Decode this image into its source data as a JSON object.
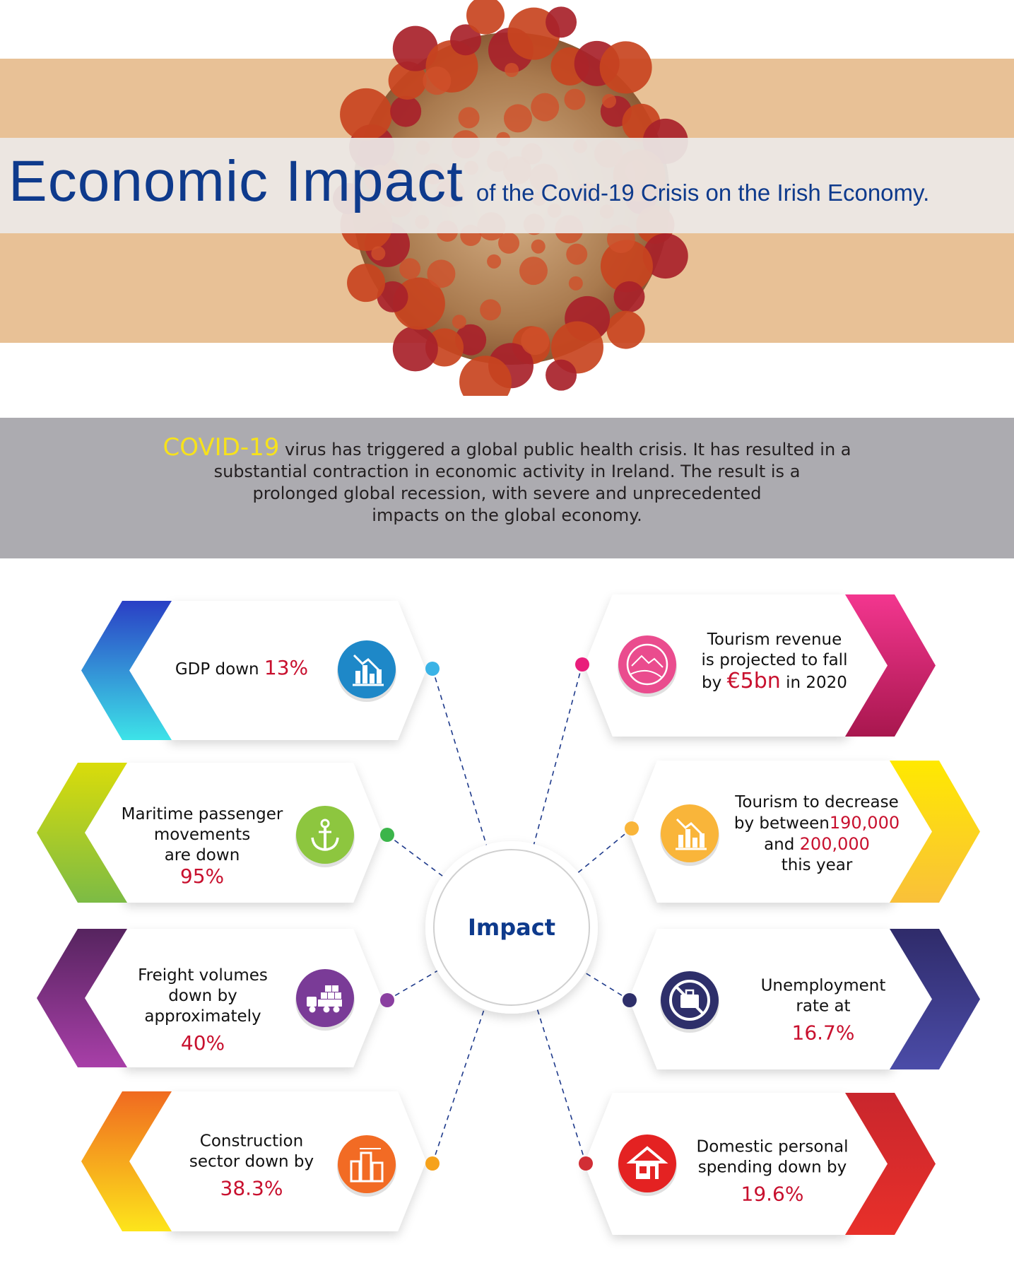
{
  "header": {
    "title": "Economic Impact",
    "subtitle": "of the Covid-19 Crisis on the Irish Economy."
  },
  "intro": {
    "highlight": "COVID-19",
    "line1": " virus has triggered a global public health crisis. It has resulted in a",
    "line2": "substantial contraction in  economic activity in Ireland. The result is a",
    "line3": "prolonged global  recession, with severe and  unprecedented",
    "line4": "impacts on the global economy."
  },
  "center": {
    "label": "Impact"
  },
  "cards": [
    {
      "id": "gdp",
      "side": "left",
      "icon": "bar-chart-down-icon",
      "colors": [
        "#2a3fc5",
        "#3de3e8"
      ],
      "icon_color": "#1e88c8",
      "dot_color": "#3ab3e6",
      "l1": "GDP down ",
      "value": "13%"
    },
    {
      "id": "maritime",
      "side": "left",
      "icon": "anchor-icon",
      "colors": [
        "#dadc0a",
        "#7cbb45"
      ],
      "icon_color": "#8dc63f",
      "dot_color": "#3cb54a",
      "l1": "Maritime passenger",
      "l2": "movements",
      "l3": "are down",
      "value": "95%"
    },
    {
      "id": "freight",
      "side": "left",
      "icon": "freight-truck-icon",
      "colors": [
        "#56245f",
        "#a83fa8"
      ],
      "icon_color": "#7a3b97",
      "dot_color": "#8a3fa0",
      "l1": "Freight volumes",
      "l2": "down by",
      "l3": "approximately",
      "value": "40%"
    },
    {
      "id": "construction",
      "side": "left",
      "icon": "buildings-crane-icon",
      "colors": [
        "#f06a20",
        "#fde51b"
      ],
      "icon_color": "#f26b24",
      "dot_color": "#f6a21b",
      "l1": "Construction",
      "l2": "sector down by",
      "value": "38.3%"
    },
    {
      "id": "tourism-revenue",
      "side": "right",
      "icon": "travel-map-icon",
      "colors": [
        "#f3368f",
        "#a8174e"
      ],
      "icon_color": "#ea4c8e",
      "dot_color": "#e91e7b",
      "l1": "Tourism revenue",
      "l2": "is projected to fall",
      "l3a": "by ",
      "value": "€5bn",
      "l3b": " in 2020"
    },
    {
      "id": "tourism-decrease",
      "side": "right",
      "icon": "bar-chart-down-icon",
      "colors": [
        "#ffe900",
        "#f9c03a"
      ],
      "icon_color": "#f9b53a",
      "dot_color": "#f9b53a",
      "l1": "Tourism to decrease",
      "l2a": "by between",
      "value": "190,000",
      "l3a": "and ",
      "value2": "200,000",
      "l4": "this year"
    },
    {
      "id": "unemployment",
      "side": "right",
      "icon": "no-jobs-briefcase-icon",
      "colors": [
        "#2f2b6a",
        "#4b4ca8"
      ],
      "icon_color": "#2e2f6a",
      "dot_color": "#2e2f6a",
      "l1": "Unemployment",
      "l2": "rate at",
      "value": "16.7%"
    },
    {
      "id": "domestic-spending",
      "side": "right",
      "icon": "house-icon",
      "colors": [
        "#c9262d",
        "#e8302a"
      ],
      "icon_color": "#e42222",
      "dot_color": "#d12e35",
      "l1": "Domestic personal",
      "l2": "spending down by",
      "value": "19.6%"
    }
  ]
}
